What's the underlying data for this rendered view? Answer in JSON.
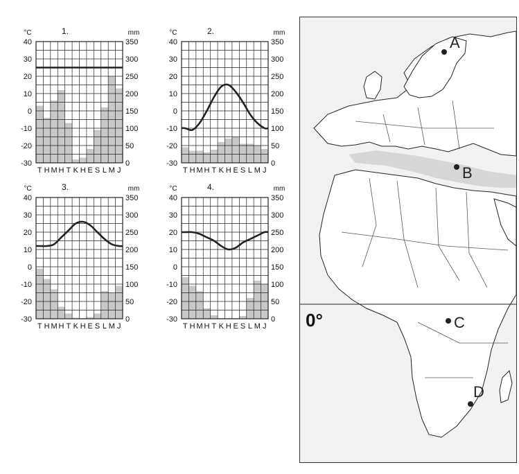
{
  "chart_data": [
    {
      "type": "bar",
      "title": "1.",
      "temp_unit": "°C",
      "precip_unit": "mm",
      "temp_ticks": [
        "40",
        "30",
        "20",
        "10",
        "0",
        "-10",
        "-20",
        "-30"
      ],
      "precip_ticks": [
        "350",
        "300",
        "250",
        "200",
        "150",
        "100",
        "50",
        "0"
      ],
      "ylim_temp": [
        -30,
        40
      ],
      "ylim_precip": [
        0,
        350
      ],
      "categories": [
        "T",
        "H",
        "M",
        "H",
        "T",
        "K",
        "H",
        "E",
        "S",
        "L",
        "M",
        "J"
      ],
      "series": [
        {
          "kind": "bar",
          "values": [
            165,
            130,
            180,
            210,
            115,
            10,
            15,
            40,
            95,
            160,
            250,
            215
          ]
        },
        {
          "kind": "line",
          "values": [
            25,
            25,
            25,
            25,
            25,
            25,
            25,
            25,
            25,
            25,
            25,
            25
          ]
        }
      ]
    },
    {
      "type": "bar",
      "title": "2.",
      "temp_unit": "°C",
      "precip_unit": "mm",
      "temp_ticks": [
        "40",
        "30",
        "20",
        "10",
        "0",
        "-10",
        "-20",
        "-30"
      ],
      "precip_ticks": [
        "350",
        "300",
        "250",
        "200",
        "150",
        "100",
        "50",
        "0"
      ],
      "ylim_temp": [
        -30,
        40
      ],
      "ylim_precip": [
        0,
        350
      ],
      "categories": [
        "T",
        "H",
        "M",
        "H",
        "T",
        "K",
        "H",
        "E",
        "S",
        "L",
        "M",
        "J"
      ],
      "series": [
        {
          "kind": "bar",
          "values": [
            45,
            35,
            35,
            30,
            38,
            60,
            70,
            75,
            55,
            55,
            50,
            40
          ]
        },
        {
          "kind": "line",
          "values": [
            -10,
            -11,
            -7,
            0,
            8,
            14,
            15,
            11,
            5,
            -2,
            -7,
            -10
          ]
        }
      ]
    },
    {
      "type": "bar",
      "title": "3.",
      "temp_unit": "°C",
      "precip_unit": "mm",
      "temp_ticks": [
        "40",
        "30",
        "20",
        "10",
        "0",
        "-10",
        "-20",
        "-30"
      ],
      "precip_ticks": [
        "350",
        "300",
        "250",
        "200",
        "150",
        "100",
        "50",
        "0"
      ],
      "ylim_temp": [
        -30,
        40
      ],
      "ylim_precip": [
        0,
        350
      ],
      "categories": [
        "T",
        "H",
        "M",
        "H",
        "T",
        "K",
        "H",
        "E",
        "S",
        "L",
        "M",
        "J"
      ],
      "series": [
        {
          "kind": "bar",
          "values": [
            145,
            115,
            85,
            35,
            15,
            3,
            2,
            5,
            15,
            80,
            75,
            95
          ]
        },
        {
          "kind": "line",
          "values": [
            12,
            12,
            13,
            17,
            21,
            25,
            26,
            24,
            20,
            16,
            13,
            12
          ]
        }
      ]
    },
    {
      "type": "bar",
      "title": "4.",
      "temp_unit": "°C",
      "precip_unit": "mm",
      "temp_ticks": [
        "40",
        "30",
        "20",
        "10",
        "0",
        "-10",
        "-20",
        "-30"
      ],
      "precip_ticks": [
        "350",
        "300",
        "250",
        "200",
        "150",
        "100",
        "50",
        "0"
      ],
      "ylim_temp": [
        -30,
        40
      ],
      "ylim_precip": [
        0,
        350
      ],
      "categories": [
        "T",
        "H",
        "M",
        "H",
        "T",
        "K",
        "H",
        "E",
        "S",
        "L",
        "M",
        "J"
      ],
      "series": [
        {
          "kind": "bar",
          "values": [
            120,
            95,
            80,
            30,
            10,
            2,
            2,
            2,
            8,
            60,
            110,
            100
          ]
        },
        {
          "kind": "line",
          "values": [
            20,
            20,
            19,
            17,
            15,
            12,
            10,
            11,
            14,
            16,
            18,
            20
          ]
        }
      ]
    }
  ],
  "map": {
    "labels": [
      {
        "id": "A",
        "text": "A"
      },
      {
        "id": "B",
        "text": "B"
      },
      {
        "id": "C",
        "text": "C"
      },
      {
        "id": "D",
        "text": "D"
      }
    ],
    "equator_label": "0°"
  },
  "colors": {
    "bars": "#c8c8c8",
    "temp_line": "#222222",
    "grid": "#222222",
    "sea": "#d6d6d6",
    "land": "#ffffff",
    "map_bg": "#f2f2f2"
  }
}
